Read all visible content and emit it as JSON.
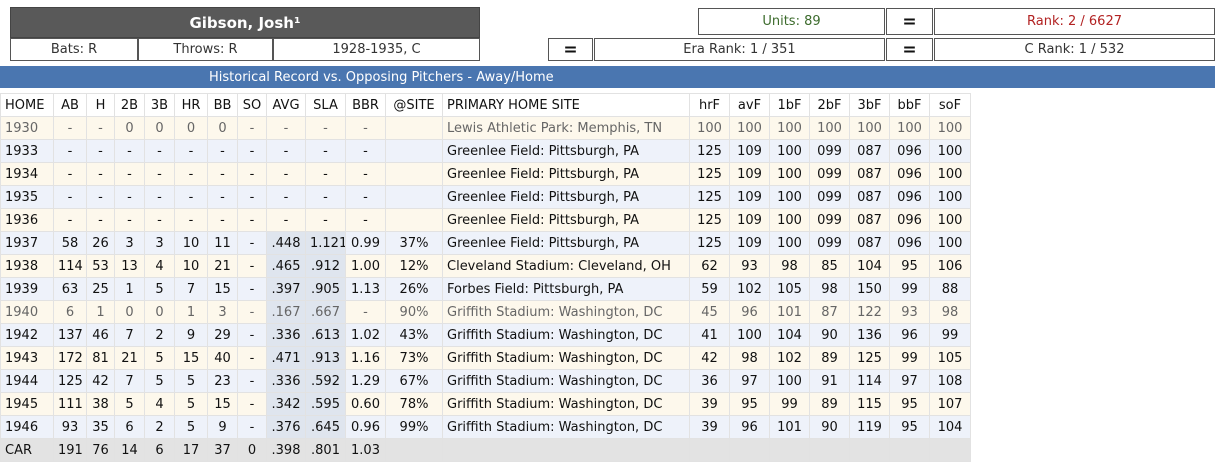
{
  "player": {
    "name": "Gibson, Josh¹",
    "bats": "Bats: R",
    "throws": "Throws: R",
    "years_pos": "1928-1935, C"
  },
  "ranks": {
    "units": "Units: 89",
    "rank": "Rank: 2 / 6627",
    "eq1": "=",
    "eq2": "=",
    "eq3": "=",
    "era_rank": "Era Rank: 1 / 351",
    "c_rank": "C Rank: 1 / 532"
  },
  "banner": "Historical Record vs. Opposing Pitchers - Away/Home",
  "table": {
    "columns": [
      "HOME",
      "AB",
      "H",
      "2B",
      "3B",
      "HR",
      "BB",
      "SO",
      "AVG",
      "SLA",
      "BBR",
      "@SITE",
      "PRIMARY HOME SITE",
      "hrF",
      "avF",
      "1bF",
      "2bF",
      "3bF",
      "bbF",
      "soF"
    ],
    "rows": [
      [
        "1930",
        "-",
        "-",
        "0",
        "0",
        "0",
        "0",
        "-",
        "-",
        "-",
        "-",
        "",
        "Lewis Athletic Park: Memphis, TN",
        "100",
        "100",
        "100",
        "100",
        "100",
        "100",
        "100"
      ],
      [
        "1933",
        "-",
        "-",
        "-",
        "-",
        "-",
        "-",
        "-",
        "-",
        "-",
        "-",
        "",
        "Greenlee Field: Pittsburgh, PA",
        "125",
        "109",
        "100",
        "099",
        "087",
        "096",
        "100"
      ],
      [
        "1934",
        "-",
        "-",
        "-",
        "-",
        "-",
        "-",
        "-",
        "-",
        "-",
        "-",
        "",
        "Greenlee Field: Pittsburgh, PA",
        "125",
        "109",
        "100",
        "099",
        "087",
        "096",
        "100"
      ],
      [
        "1935",
        "-",
        "-",
        "-",
        "-",
        "-",
        "-",
        "-",
        "-",
        "-",
        "-",
        "",
        "Greenlee Field: Pittsburgh, PA",
        "125",
        "109",
        "100",
        "099",
        "087",
        "096",
        "100"
      ],
      [
        "1936",
        "-",
        "-",
        "-",
        "-",
        "-",
        "-",
        "-",
        "-",
        "-",
        "-",
        "",
        "Greenlee Field: Pittsburgh, PA",
        "125",
        "109",
        "100",
        "099",
        "087",
        "096",
        "100"
      ],
      [
        "1937",
        "58",
        "26",
        "3",
        "3",
        "10",
        "11",
        "-",
        ".448",
        "1.121",
        "0.99",
        "37%",
        "Greenlee Field: Pittsburgh, PA",
        "125",
        "109",
        "100",
        "099",
        "087",
        "096",
        "100"
      ],
      [
        "1938",
        "114",
        "53",
        "13",
        "4",
        "10",
        "21",
        "-",
        ".465",
        ".912",
        "1.00",
        "12%",
        "Cleveland Stadium: Cleveland, OH",
        "62",
        "93",
        "98",
        "85",
        "104",
        "95",
        "106"
      ],
      [
        "1939",
        "63",
        "25",
        "1",
        "5",
        "7",
        "15",
        "-",
        ".397",
        ".905",
        "1.13",
        "26%",
        "Forbes Field: Pittsburgh, PA",
        "59",
        "102",
        "105",
        "98",
        "150",
        "99",
        "88"
      ],
      [
        "1940",
        "6",
        "1",
        "0",
        "0",
        "1",
        "3",
        "-",
        ".167",
        ".667",
        "-",
        "90%",
        "Griffith Stadium: Washington, DC",
        "45",
        "96",
        "101",
        "87",
        "122",
        "93",
        "98"
      ],
      [
        "1942",
        "137",
        "46",
        "7",
        "2",
        "9",
        "29",
        "-",
        ".336",
        ".613",
        "1.02",
        "43%",
        "Griffith Stadium: Washington, DC",
        "41",
        "100",
        "104",
        "90",
        "136",
        "96",
        "99"
      ],
      [
        "1943",
        "172",
        "81",
        "21",
        "5",
        "15",
        "40",
        "-",
        ".471",
        ".913",
        "1.16",
        "73%",
        "Griffith Stadium: Washington, DC",
        "42",
        "98",
        "102",
        "89",
        "125",
        "99",
        "105"
      ],
      [
        "1944",
        "125",
        "42",
        "7",
        "5",
        "5",
        "23",
        "-",
        ".336",
        ".592",
        "1.29",
        "67%",
        "Griffith Stadium: Washington, DC",
        "36",
        "97",
        "100",
        "91",
        "114",
        "97",
        "108"
      ],
      [
        "1945",
        "111",
        "38",
        "5",
        "4",
        "5",
        "15",
        "-",
        ".342",
        ".595",
        "0.60",
        "78%",
        "Griffith Stadium: Washington, DC",
        "39",
        "95",
        "99",
        "89",
        "115",
        "95",
        "107"
      ],
      [
        "1946",
        "93",
        "35",
        "6",
        "2",
        "5",
        "9",
        "-",
        ".376",
        ".645",
        "0.96",
        "99%",
        "Griffith Stadium: Washington, DC",
        "39",
        "96",
        "101",
        "90",
        "119",
        "95",
        "104"
      ]
    ],
    "career": [
      "CAR",
      "191",
      "76",
      "14",
      "6",
      "17",
      "37",
      "0",
      ".398",
      ".801",
      "1.03",
      "",
      "",
      "",
      "",
      "",
      "",
      "",
      "",
      ""
    ]
  },
  "colors": {
    "banner": "#4a76b0",
    "name_header": "#595959",
    "rank_text": "#b22222",
    "units_text": "#3c6b2c"
  }
}
